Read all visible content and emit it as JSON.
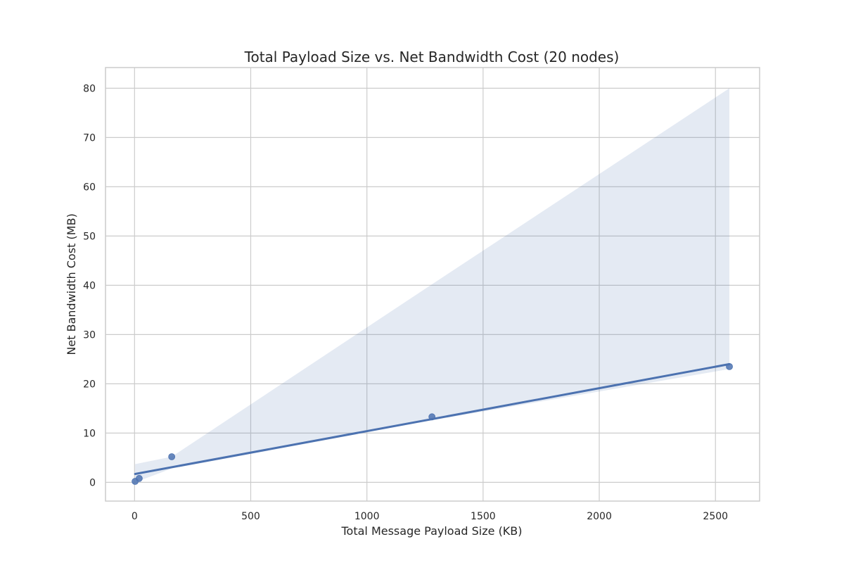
{
  "chart_data": {
    "type": "scatter",
    "title": "Total Payload Size vs. Net Bandwidth Cost (20 nodes)",
    "xlabel": "Total Message Payload Size (KB)",
    "ylabel": "Net Bandwidth Cost (MB)",
    "xlim": [
      -125,
      2690
    ],
    "ylim": [
      -3.8,
      84.2
    ],
    "x_ticks": [
      0,
      500,
      1000,
      1500,
      2000,
      2500
    ],
    "y_ticks": [
      0,
      10,
      20,
      30,
      40,
      50,
      60,
      70,
      80
    ],
    "grid": true,
    "series": [
      {
        "points": [
          {
            "x": 2.5,
            "y": 0.2
          },
          {
            "x": 20,
            "y": 0.8
          },
          {
            "x": 160,
            "y": 5.2
          },
          {
            "x": 1280,
            "y": 13.3
          },
          {
            "x": 2560,
            "y": 23.5
          }
        ],
        "regression": {
          "x0": 2.5,
          "y0": 1.7,
          "x1": 2560,
          "y1": 24.0
        },
        "confidence_band": {
          "x": [
            2.5,
            160,
            1280,
            2560
          ],
          "upper": [
            3.7,
            5.2,
            40.2,
            80.0
          ],
          "lower": [
            0.0,
            2.8,
            12.6,
            23.0
          ]
        }
      }
    ],
    "colors": {
      "point": "#4c72b0",
      "line": "#4c72b0",
      "band": "#4c72b0",
      "grid": "#cccccc",
      "frame": "#cccccc",
      "text": "#262626"
    }
  }
}
